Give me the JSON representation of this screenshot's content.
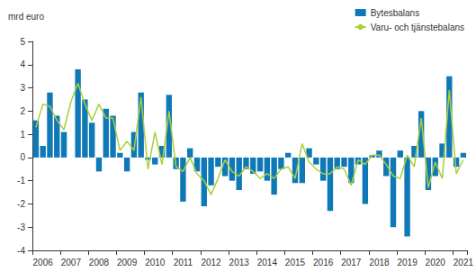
{
  "chart_data": {
    "type": "bar",
    "y_label": "mrd euro",
    "categories": [
      null,
      "2006",
      null,
      null,
      null,
      "2007",
      null,
      null,
      null,
      "2008",
      null,
      null,
      null,
      "2009",
      null,
      null,
      null,
      "2010",
      null,
      null,
      null,
      "2011",
      null,
      null,
      null,
      "2012",
      null,
      null,
      null,
      "2013",
      null,
      null,
      null,
      "2014",
      null,
      null,
      null,
      "2015",
      null,
      null,
      null,
      "2016",
      null,
      null,
      null,
      "2017",
      null,
      null,
      null,
      "2018",
      null,
      null,
      null,
      "2019",
      null,
      null,
      null,
      "2020",
      null,
      null,
      null,
      "2021"
    ],
    "series": [
      {
        "name": "Bytesbalans",
        "type": "bar",
        "color": "#0f79b8",
        "values": [
          1.6,
          0.5,
          2.8,
          1.8,
          1.1,
          0.0,
          3.8,
          2.5,
          1.5,
          -0.6,
          2.1,
          1.8,
          0.2,
          -0.6,
          1.1,
          2.8,
          -0.1,
          -0.3,
          0.5,
          2.7,
          -0.5,
          -1.9,
          0.4,
          -0.6,
          -2.1,
          -1.2,
          -0.4,
          -0.8,
          -1.0,
          -1.4,
          -0.5,
          -0.7,
          -0.6,
          -1.0,
          -1.6,
          -0.5,
          0.2,
          -1.1,
          -1.1,
          0.4,
          -0.3,
          -1.0,
          -2.3,
          -0.5,
          -0.4,
          -1.1,
          -0.3,
          -2.0,
          0.1,
          0.3,
          -0.8,
          -3.0,
          0.3,
          -3.4,
          0.5,
          2.0,
          -1.4,
          -0.8,
          0.6,
          3.5,
          -0.4,
          0.2
        ]
      },
      {
        "name": "Varu- och tjänstebalans",
        "type": "line",
        "color": "#a8cf38",
        "values": [
          1.3,
          2.3,
          2.2,
          1.6,
          1.2,
          2.4,
          3.2,
          2.3,
          1.6,
          2.3,
          1.7,
          1.7,
          0.3,
          0.7,
          0.3,
          2.6,
          -0.5,
          1.1,
          -0.3,
          2.0,
          -0.4,
          -0.6,
          0.0,
          -0.7,
          -1.0,
          -1.6,
          -0.9,
          -0.1,
          -0.6,
          -0.8,
          -0.4,
          -0.6,
          -0.9,
          -0.7,
          -0.9,
          -0.5,
          -0.4,
          -0.9,
          0.6,
          -0.2,
          -0.5,
          -0.7,
          -0.7,
          -0.4,
          -0.5,
          -1.2,
          -0.1,
          -0.3,
          0.1,
          0.1,
          -0.3,
          -0.8,
          -0.9,
          0.1,
          -0.4,
          1.7,
          -1.3,
          -0.2,
          -0.9,
          2.9,
          -0.7,
          -0.1
        ]
      }
    ],
    "ylim": [
      -4,
      5
    ],
    "yticks": [
      -4,
      -3,
      -2,
      -1,
      0,
      1,
      2,
      3,
      4,
      5
    ],
    "grid": false,
    "legend": "top-right"
  }
}
